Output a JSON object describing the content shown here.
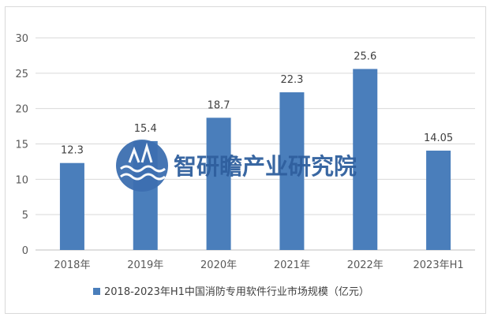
{
  "chart_data": {
    "type": "bar",
    "categories": [
      "2018年",
      "2019年",
      "2020年",
      "2021年",
      "2022年",
      "2023年H1"
    ],
    "series": [
      {
        "name": "2018-2023年H1中国消防专用软件行业市场规模（亿元）",
        "values": [
          12.3,
          15.4,
          18.7,
          22.3,
          25.6,
          14.05
        ],
        "labels": [
          "12.3",
          "15.4",
          "18.7",
          "22.3",
          "25.6",
          "14.05"
        ],
        "color": "#4a7ebb"
      }
    ],
    "ylim": [
      0,
      30
    ],
    "yticks": [
      0,
      5,
      10,
      15,
      20,
      25,
      30
    ],
    "grid": true,
    "legend": "bottom"
  },
  "watermark": {
    "text": "智研瞻产业研究院",
    "color": "#2f5f9e"
  }
}
